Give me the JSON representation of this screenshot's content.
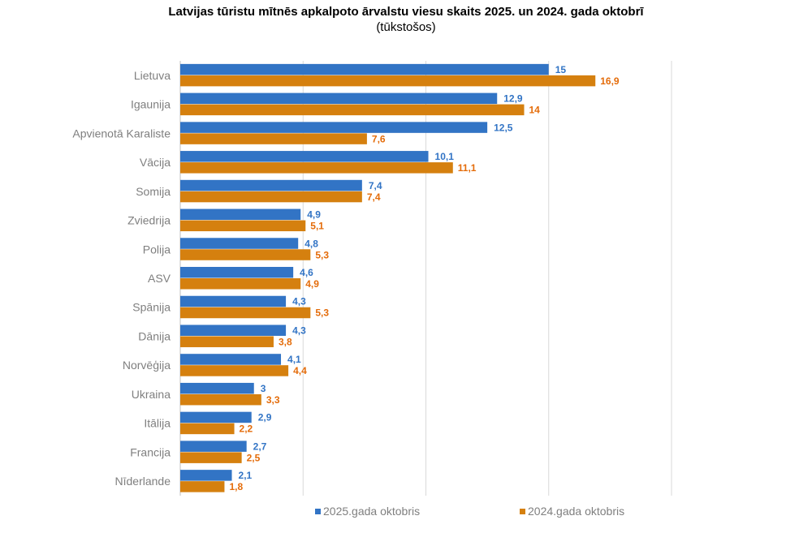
{
  "chart_data": {
    "type": "bar",
    "orientation": "horizontal",
    "title": "Latvijas tūristu mītnēs apkalpoto ārvalstu viesu skaits 2025. un 2024. gada oktobrī",
    "subtitle": "(tūkstošos)",
    "xlabel": "",
    "ylabel": "",
    "xlim": [
      0,
      20
    ],
    "grid": true,
    "legend_position": "bottom",
    "categories": [
      "Lietuva",
      "Igaunija",
      "Apvienotā Karaliste",
      "Vācija",
      "Somija",
      "Zviedrija",
      "Polija",
      "ASV",
      "Spānija",
      "Dānija",
      "Norvēģija",
      "Ukraina",
      "Itālija",
      "Francija",
      "Nīderlande"
    ],
    "series": [
      {
        "name": "2025.gada oktobris",
        "color": "#3274c5",
        "label_color": "#3274c5",
        "values": [
          15,
          12.9,
          12.5,
          10.1,
          7.4,
          4.9,
          4.8,
          4.6,
          4.3,
          4.3,
          4.1,
          3,
          2.9,
          2.7,
          2.1
        ],
        "labels": [
          "15",
          "12,9",
          "12,5",
          "10,1",
          "7,4",
          "4,9",
          "4,8",
          "4,6",
          "4,3",
          "4,3",
          "4,1",
          "3",
          "2,9",
          "2,7",
          "2,1"
        ]
      },
      {
        "name": "2024.gada oktobris",
        "color": "#d5800f",
        "label_color": "#e46c0a",
        "values": [
          16.9,
          14,
          7.6,
          11.1,
          7.4,
          5.1,
          5.3,
          4.9,
          5.3,
          3.8,
          4.4,
          3.3,
          2.2,
          2.5,
          1.8
        ],
        "labels": [
          "16,9",
          "14",
          "7,6",
          "11,1",
          "7,4",
          "5,1",
          "5,3",
          "4,9",
          "5,3",
          "3,8",
          "4,4",
          "3,3",
          "2,2",
          "2,5",
          "1,8"
        ]
      }
    ]
  }
}
